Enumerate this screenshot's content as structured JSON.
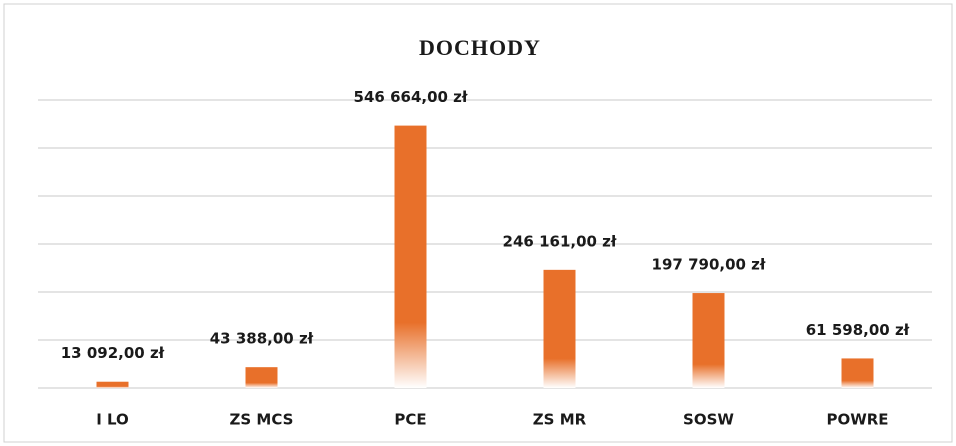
{
  "chart_data": {
    "type": "bar",
    "title": "DOCHODY",
    "categories": [
      "I LO",
      "ZS MCS",
      "PCE",
      "ZS MR",
      "SOSW",
      "POWRE"
    ],
    "values": [
      13092,
      43388,
      546664,
      246161,
      197790,
      61598
    ],
    "value_labels": [
      "13 092,00 zł",
      "43 388,00 zł",
      "546 664,00 zł",
      "246 161,00 zł",
      "197 790,00 zł",
      "61 598,00 zł"
    ],
    "color": "#e8702a",
    "ylim": [
      0,
      600000
    ],
    "yticks": [
      0,
      100000,
      200000,
      300000,
      400000,
      500000,
      600000
    ],
    "grid": true
  }
}
